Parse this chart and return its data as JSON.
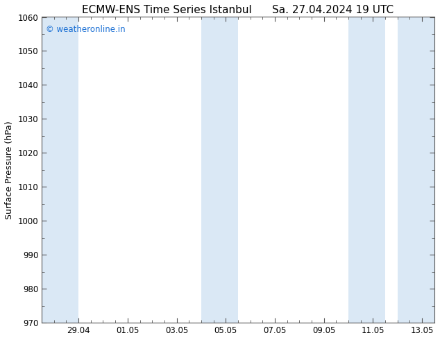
{
  "title_left": "ECMW-ENS Time Series Istanbul",
  "title_right": "Sa. 27.04.2024 19 UTC",
  "ylabel": "Surface Pressure (hPa)",
  "ylim": [
    970,
    1060
  ],
  "yticks": [
    970,
    980,
    990,
    1000,
    1010,
    1020,
    1030,
    1040,
    1050,
    1060
  ],
  "xtick_labels": [
    "29.04",
    "01.05",
    "03.05",
    "05.05",
    "07.05",
    "09.05",
    "11.05",
    "13.05"
  ],
  "xtick_positions": [
    1.5,
    3.5,
    5.5,
    7.5,
    9.5,
    11.5,
    13.5,
    15.5
  ],
  "xlim": [
    0,
    16
  ],
  "shaded_bands": [
    {
      "x_start": 0.0,
      "x_end": 1.5
    },
    {
      "x_start": 6.5,
      "x_end": 8.0
    },
    {
      "x_start": 12.5,
      "x_end": 14.0
    },
    {
      "x_start": 14.5,
      "x_end": 16.0
    }
  ],
  "shade_color": "#dae8f5",
  "background_color": "#ffffff",
  "plot_bg_color": "#ffffff",
  "watermark_text": "© weatheronline.in",
  "watermark_color": "#1a6fd4",
  "title_color": "#000000",
  "title_fontsize": 11,
  "ylabel_fontsize": 9,
  "tick_fontsize": 8.5,
  "watermark_fontsize": 8.5
}
